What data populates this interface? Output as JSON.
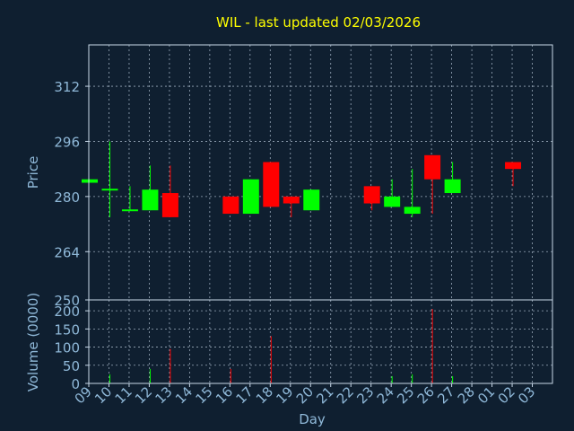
{
  "chart_data": [
    {
      "type": "candlestick",
      "title": "WIL - last updated 02/03/2026",
      "ylabel": "Price",
      "ylim": [
        250,
        324
      ],
      "yticks": [
        250,
        264,
        280,
        296,
        312
      ],
      "grid": true,
      "candles": [
        {
          "day": 0,
          "open": 284,
          "high": 285,
          "low": 284,
          "close": 285
        },
        {
          "day": 1,
          "open": 282,
          "high": 296,
          "low": 274,
          "close": 282
        },
        {
          "day": 2,
          "open": 276,
          "high": 283,
          "low": 276,
          "close": 276
        },
        {
          "day": 3,
          "open": 276,
          "high": 289,
          "low": 276,
          "close": 282
        },
        {
          "day": 4,
          "open": 281,
          "high": 289,
          "low": 274,
          "close": 274
        },
        {
          "day": 7,
          "open": 280,
          "high": 280,
          "low": 275,
          "close": 275
        },
        {
          "day": 8,
          "open": 275,
          "high": 285,
          "low": 275,
          "close": 285
        },
        {
          "day": 9,
          "open": 290,
          "high": 290,
          "low": 277,
          "close": 277
        },
        {
          "day": 10,
          "open": 280,
          "high": 280,
          "low": 274,
          "close": 278
        },
        {
          "day": 11,
          "open": 276,
          "high": 282,
          "low": 276,
          "close": 282
        },
        {
          "day": 14,
          "open": 283,
          "high": 283,
          "low": 276,
          "close": 278
        },
        {
          "day": 15,
          "open": 277,
          "high": 285,
          "low": 277,
          "close": 280
        },
        {
          "day": 16,
          "open": 275,
          "high": 288,
          "low": 274,
          "close": 277
        },
        {
          "day": 17,
          "open": 292,
          "high": 292,
          "low": 275,
          "close": 285
        },
        {
          "day": 18,
          "open": 281,
          "high": 290,
          "low": 281,
          "close": 285
        },
        {
          "day": 21,
          "open": 290,
          "high": 290,
          "low": 283,
          "close": 288
        }
      ]
    },
    {
      "type": "bar",
      "ylabel": "Volume (0000)",
      "xlabel": "Day",
      "ylim": [
        0,
        230
      ],
      "yticks": [
        0,
        50,
        100,
        150,
        200
      ],
      "grid": true,
      "categories": [
        "09",
        "10",
        "11",
        "12",
        "13",
        "14",
        "15",
        "16",
        "17",
        "18",
        "19",
        "20",
        "21",
        "22",
        "23",
        "24",
        "25",
        "26",
        "27",
        "28",
        "01",
        "02",
        "03"
      ],
      "volume": [
        {
          "day": 1,
          "value": 25,
          "dir": "up"
        },
        {
          "day": 3,
          "value": 40,
          "dir": "up"
        },
        {
          "day": 4,
          "value": 95,
          "dir": "down"
        },
        {
          "day": 7,
          "value": 40,
          "dir": "down"
        },
        {
          "day": 9,
          "value": 130,
          "dir": "down"
        },
        {
          "day": 15,
          "value": 20,
          "dir": "up"
        },
        {
          "day": 16,
          "value": 25,
          "dir": "up"
        },
        {
          "day": 17,
          "value": 205,
          "dir": "down"
        },
        {
          "day": 18,
          "value": 20,
          "dir": "up"
        }
      ]
    }
  ],
  "colors": {
    "background": "#0f1f30",
    "up": "#00ff00",
    "down": "#ff0000",
    "title": "#ffff00",
    "axis_text": "#8fb8d8",
    "axis_line": "#c8d8e8",
    "grid": "#c8d8e8"
  }
}
